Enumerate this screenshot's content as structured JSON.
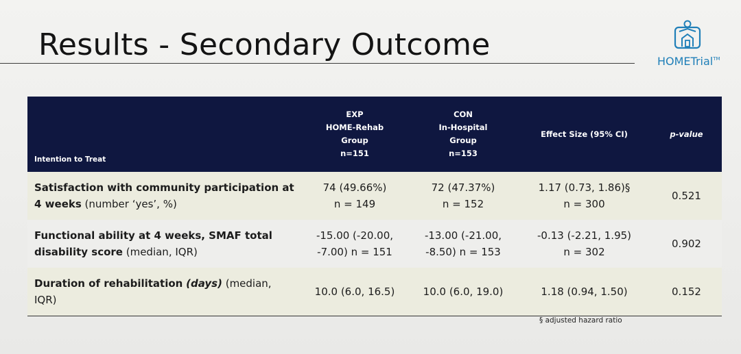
{
  "slide": {
    "title": "Results - Secondary Outcome",
    "logo_text": "HOMETrial",
    "logo_tm": "TM"
  },
  "table": {
    "corner_label": "Intention to Treat",
    "col_exp": [
      "EXP",
      "HOME-Rehab",
      "Group",
      "n=151"
    ],
    "col_con": [
      "CON",
      "In-Hospital",
      "Group",
      "n=153"
    ],
    "col_effect": "Effect Size (95% CI)",
    "col_p": "p-value",
    "rows": [
      {
        "label_bold": "Satisfaction with community participation at 4 weeks",
        "label_rest": " (number ‘yes’, %)",
        "exp": [
          "74 (49.66%)",
          "n = 149"
        ],
        "con": [
          "72 (47.37%)",
          "n = 152"
        ],
        "effect": [
          "1.17 (0.73, 1.86)§",
          "n = 300"
        ],
        "p": "0.521"
      },
      {
        "label_bold": "Functional ability at 4 weeks, SMAF total disability score",
        "label_rest": " (median, IQR)",
        "exp": [
          "-15.00 (-20.00,",
          "-7.00) n = 151"
        ],
        "con": [
          "-13.00 (-21.00,",
          "-8.50) n = 153"
        ],
        "effect": [
          "-0.13 (-2.21, 1.95)",
          "n = 302"
        ],
        "p": "0.902"
      },
      {
        "label_bold": "Duration of rehabilitation",
        "label_italic": "(days)",
        "label_rest": " (median, IQR)",
        "exp": "10.0 (6.0, 16.5)",
        "con": "10.0 (6.0, 19.0)",
        "effect": "1.18 (0.94, 1.50)",
        "p": "0.152"
      }
    ],
    "footnote": "§ adjusted hazard ratio"
  },
  "colors": {
    "header_bg": "#0f1740",
    "band_bg": "#ececdf",
    "logo_blue": "#1f7fb8"
  },
  "icons": {
    "logo": "home-person-icon"
  }
}
